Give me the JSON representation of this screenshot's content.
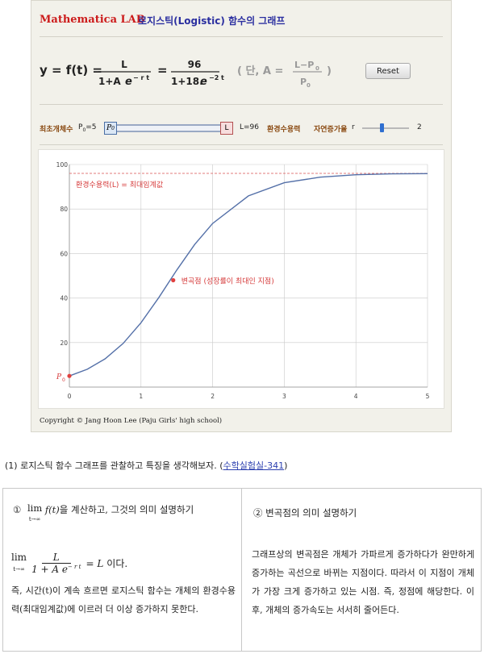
{
  "app": {
    "brand": "Mathematica LAB",
    "subtitle": "로지스틱(Logistic) 함수의 그래프",
    "reset_label": "Reset",
    "copyright": "Copyright © Jang Hoon Lee (Paju Girls' high school)"
  },
  "formula": {
    "lhs": "y = f(t) =",
    "num": "L",
    "den_a": "1+A",
    "e": "e",
    "exp": "− r t",
    "eq": "=",
    "num2": "96",
    "den2": "1+18.",
    "exp2": "−2 t",
    "note_open": "( 단, A =",
    "note_num": "L−P",
    "note_den": "P",
    "note_close": ")",
    "sub0": "0"
  },
  "controls": {
    "p0_label": "최초개체수",
    "p0_value_text": "P",
    "p0_value_sub": "0",
    "p0_value_tail": "=5",
    "p0_handle": "P",
    "p0_handle_sub": "0",
    "l_handle": "L",
    "l_value": "L=96",
    "l_label": "환경수용력",
    "r_label": "자연증가율",
    "r_prefix": "r",
    "r_value": "2"
  },
  "chart_data": {
    "type": "line",
    "xlim": [
      0,
      5
    ],
    "ylim": [
      0,
      100
    ],
    "x_ticks": [
      0,
      1,
      2,
      3,
      4,
      5
    ],
    "y_ticks": [
      20,
      40,
      60,
      80,
      100
    ],
    "grid": true,
    "L": 96,
    "P0": 5,
    "A": 18.2,
    "r": 2,
    "series": [
      {
        "x": [
          0,
          0.25,
          0.5,
          0.75,
          1,
          1.25,
          1.5,
          1.75,
          2,
          2.5,
          3,
          3.5,
          4,
          4.5,
          5
        ],
        "values": [
          5.0,
          8.0,
          12.7,
          19.6,
          28.9,
          40.3,
          52.6,
          64.1,
          73.5,
          85.9,
          91.8,
          94.3,
          95.4,
          95.8,
          95.9
        ]
      }
    ],
    "asymptote_y": 96,
    "inflection": {
      "x": 1.45,
      "y": 48
    },
    "annotations": {
      "asymptote_text": "환경수용력(L) = 최대임계값",
      "inflection_text": "변곡점 (성장률이 최대인 지점)",
      "p0_marker": "P",
      "p0_marker_sub": "0"
    },
    "colors": {
      "curve": "#5470a8",
      "asymptote": "#e07b7b",
      "marker": "#e0413f",
      "annotation": "#d63b3b",
      "grid": "#c9c9c9"
    }
  },
  "question": {
    "number": "(1)",
    "text": "로지스틱 함수 그래프를 관찰하고 특징을 생각해보자.",
    "link_open": "(",
    "link": "수학실험실-341",
    "link_close": ")"
  },
  "left_col": {
    "circle": "①",
    "lim": "lim",
    "lim_sub": "t→∞",
    "f_expr": "f(t)",
    "head_tail": "을 계산하고, 그것의 의미 설명하기",
    "eq_lim": "lim",
    "eq_lim_sub": "t→∞",
    "eq_num": "L",
    "eq_den": "1 + A e",
    "eq_exp": "− r t",
    "eq_rhs": "= L",
    "eq_tail": "이다.",
    "body": "즉, 시간(t)이 계속 흐르면 로지스틱 함수는 개체의 환경수용력(최대임계값)에 이르러 더 이상 증가하지 못한다."
  },
  "right_col": {
    "head": "② 변곡점의 의미 설명하기",
    "body": "그래프상의 변곡점은 개체가 가파르게 증가하다가 완만하게 증가하는 곡선으로 바뀌는 지점이다. 따라서 이 지점이 개체가 가장 크게 증가하고 있는 시점. 즉, 정점에 해당한다. 이후, 개체의 증가속도는 서서히 줄어든다."
  }
}
